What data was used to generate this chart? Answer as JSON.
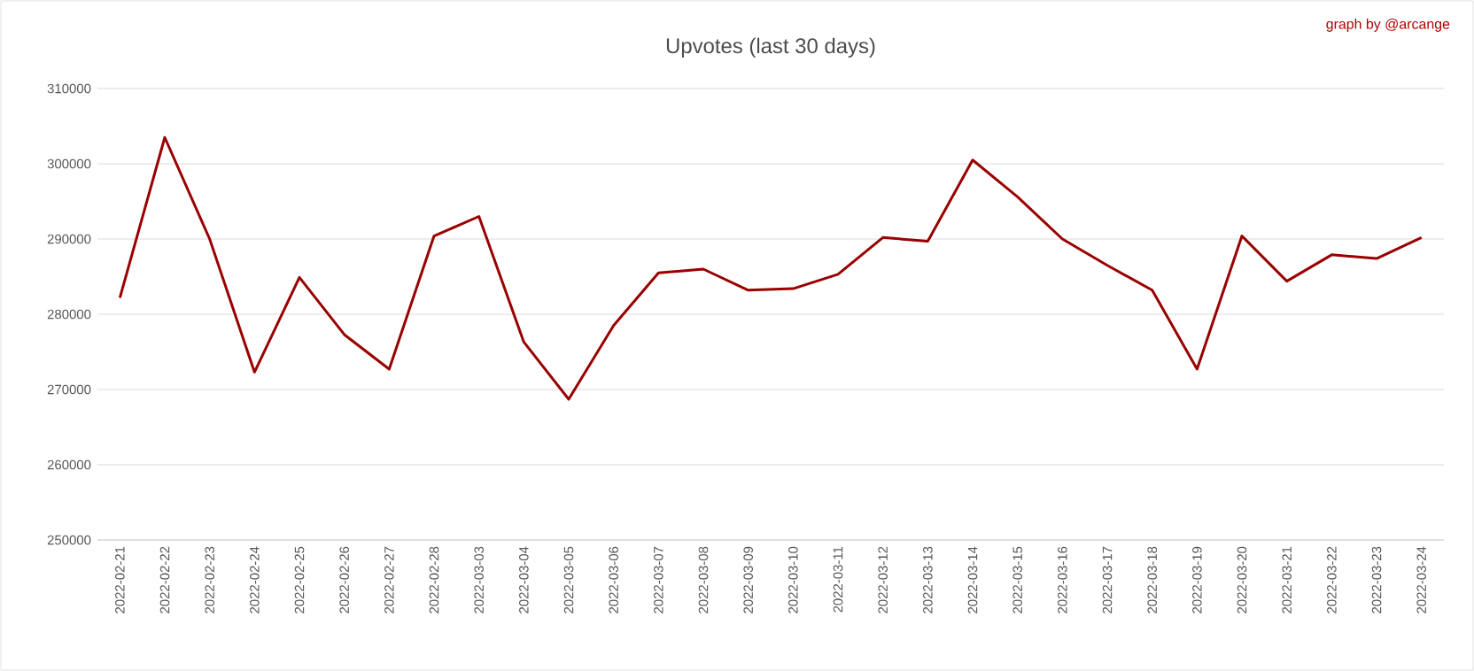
{
  "chart_data": {
    "type": "line",
    "title": "Upvotes (last 30 days)",
    "annotations": [
      "graph by @arcange"
    ],
    "categories": [
      "2022-02-21",
      "2022-02-22",
      "2022-02-23",
      "2022-02-24",
      "2022-02-25",
      "2022-02-26",
      "2022-02-27",
      "2022-02-28",
      "2022-03-03",
      "2022-03-04",
      "2022-03-05",
      "2022-03-06",
      "2022-03-07",
      "2022-03-08",
      "2022-03-09",
      "2022-03-10",
      "2022-03-11",
      "2022-03-12",
      "2022-03-13",
      "2022-03-14",
      "2022-03-15",
      "2022-03-16",
      "2022-03-17",
      "2022-03-18",
      "2022-03-19",
      "2022-03-20",
      "2022-03-21",
      "2022-03-22",
      "2022-03-23",
      "2022-03-24"
    ],
    "series": [
      {
        "color": "#990000",
        "values": [
          282200,
          303500,
          290000,
          272300,
          284900,
          277300,
          272700,
          290400,
          293000,
          276300,
          268700,
          278500,
          285500,
          286000,
          283200,
          283400,
          285300,
          290200,
          289700,
          300500,
          295600,
          290000,
          286500,
          283200,
          272700,
          290400,
          284400,
          287900,
          287400,
          290200
        ]
      }
    ],
    "ylim": [
      250000,
      310000
    ],
    "yticks": [
      250000,
      260000,
      270000,
      280000,
      290000,
      300000,
      310000
    ],
    "grid": "y",
    "marker": "none",
    "line_style": "solid"
  }
}
